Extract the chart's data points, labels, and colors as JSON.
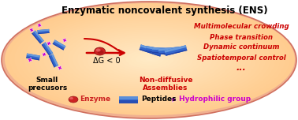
{
  "title": "Enzymatic noncovalent synthesis (ENS)",
  "title_fontsize": 8.5,
  "bg_outer_color": "#f5c0b0",
  "bg_gradient_colors": [
    "#fef5e0",
    "#fde8c0",
    "#fcd8a8"
  ],
  "red_text_lines": [
    "Multimolecular crowding",
    "Phase transition",
    "Dynamic continuum",
    "Spatiotemporal control",
    "..."
  ],
  "red_text_color": "#cc0000",
  "red_text_fontsize": 6.2,
  "label_small": "Small\nprecusors",
  "label_assembly": "Non-diffusive\nAssemblies",
  "label_dg": "ΔG < 0",
  "label_dg_color": "#000000",
  "label_assembly_color": "#cc0000",
  "legend_enzyme_color": "#cc2222",
  "legend_enzyme_label": "Enzyme",
  "legend_peptide_label": "Peptides",
  "legend_hydro_label": "Hydrophilic group",
  "legend_hydro_color": "#cc00cc",
  "peptide_dark": "#2244aa",
  "peptide_mid": "#3366cc",
  "peptide_light": "#6699dd",
  "peptide_vlight": "#aabbee",
  "arrow_color": "#cc0000",
  "hydro_color": "#cc00cc"
}
